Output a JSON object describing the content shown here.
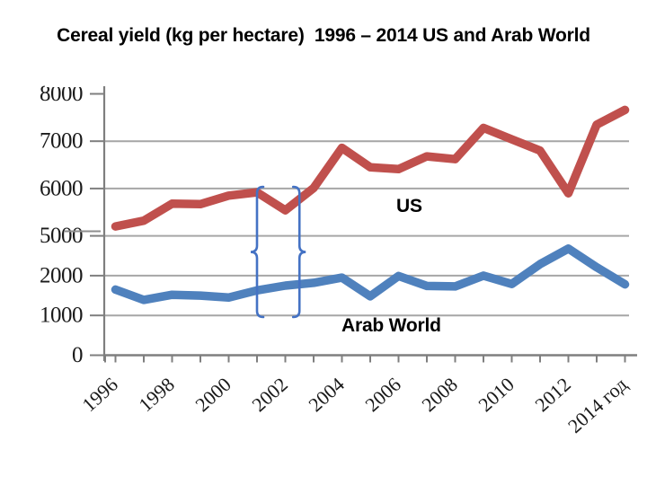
{
  "page": {
    "title": "Cereal yield (kg per hectare)  1996 – 2014 US and Arab World"
  },
  "chart_data": {
    "type": "line",
    "title": "Cereal yield (kg per hectare)  1996 – 2014 US and Arab World",
    "x": [
      1996,
      1997,
      1998,
      1999,
      2000,
      2001,
      2002,
      2003,
      2004,
      2005,
      2006,
      2007,
      2008,
      2009,
      2010,
      2011,
      2012,
      2013,
      2014
    ],
    "x_tick_labels": [
      "1996",
      "1998",
      "2000",
      "2002",
      "2004",
      "2006",
      "2008",
      "2010",
      "2012",
      "2014 год"
    ],
    "y_axis": {
      "broken": true,
      "note_visible_segments": "axis shows 0-2000 then jumps to 5000-8000",
      "labels": [
        {
          "text": "8000",
          "value": 8000,
          "scale": "upper",
          "grid": false,
          "clipped_top": true
        },
        {
          "text": "7000",
          "value": 7000,
          "scale": "upper",
          "grid": true
        },
        {
          "text": "6000",
          "value": 6000,
          "scale": "upper",
          "grid": true
        },
        {
          "text": "5000",
          "value": 5000,
          "scale": "upper",
          "grid": true,
          "cut_line_through_label": true
        },
        {
          "text": "2000",
          "value": 2000,
          "scale": "lower",
          "grid": true
        },
        {
          "text": "1000",
          "value": 1000,
          "scale": "lower",
          "grid": true
        },
        {
          "text": "0",
          "value": 0,
          "scale": "lower",
          "grid": false
        }
      ]
    },
    "series": [
      {
        "name": "US",
        "color": "#C0504D",
        "scale": "upper",
        "values": [
          5200,
          5320,
          5680,
          5670,
          5850,
          5920,
          5540,
          6010,
          6860,
          6450,
          6410,
          6680,
          6620,
          7280,
          7040,
          6800,
          5900,
          7350,
          7660
        ]
      },
      {
        "name": "Arab World",
        "color": "#4F81BD",
        "scale": "lower",
        "values": [
          1650,
          1390,
          1520,
          1500,
          1450,
          1630,
          1750,
          1820,
          1950,
          1480,
          1990,
          1740,
          1730,
          2000,
          1790,
          2290,
          2680,
          2210,
          1780
        ]
      }
    ],
    "grid": true,
    "legend": "none",
    "annotations": {
      "braces": {
        "color": "#4472C4",
        "left_brace_year": 2001,
        "right_brace_year": 2002.5,
        "top_value_upper_scale": 6035,
        "bottom_value_lower_scale": 960
      }
    }
  },
  "colors": {
    "us_line": "#C0504D",
    "arab_line": "#4F81BD",
    "gridline": "#A6A6A6",
    "axis": "#7F7F7F",
    "brace": "#4472C4",
    "background": "#FFFFFF",
    "text": "#000000"
  }
}
